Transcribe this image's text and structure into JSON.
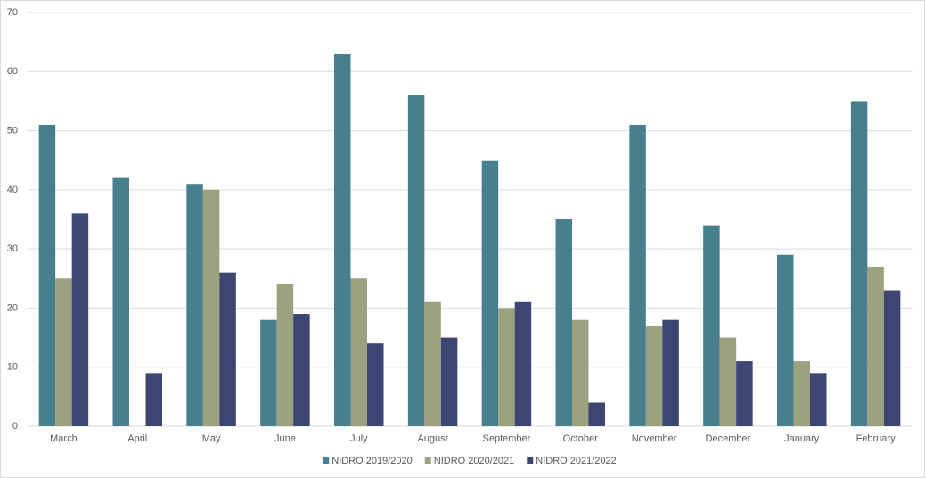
{
  "chart_data": {
    "type": "bar",
    "categories": [
      "March",
      "April",
      "May",
      "June",
      "July",
      "August",
      "September",
      "October",
      "November",
      "December",
      "January",
      "February"
    ],
    "series": [
      {
        "name": "NIDRO 2019/2020",
        "color": "#477f8f",
        "values": [
          51,
          42,
          41,
          18,
          63,
          56,
          45,
          35,
          51,
          34,
          29,
          55
        ]
      },
      {
        "name": "NIDRO 2020/2021",
        "color": "#9ca17f",
        "values": [
          25,
          0,
          40,
          24,
          25,
          21,
          20,
          18,
          17,
          15,
          11,
          27
        ]
      },
      {
        "name": "NIDRO 2021/2022",
        "color": "#3d4673",
        "values": [
          36,
          9,
          26,
          19,
          14,
          15,
          21,
          4,
          18,
          11,
          9,
          23
        ]
      }
    ],
    "ylim": [
      0,
      70
    ],
    "yticks": [
      0,
      10,
      20,
      30,
      40,
      50,
      60,
      70
    ],
    "grid": true,
    "legend": "bottom"
  }
}
